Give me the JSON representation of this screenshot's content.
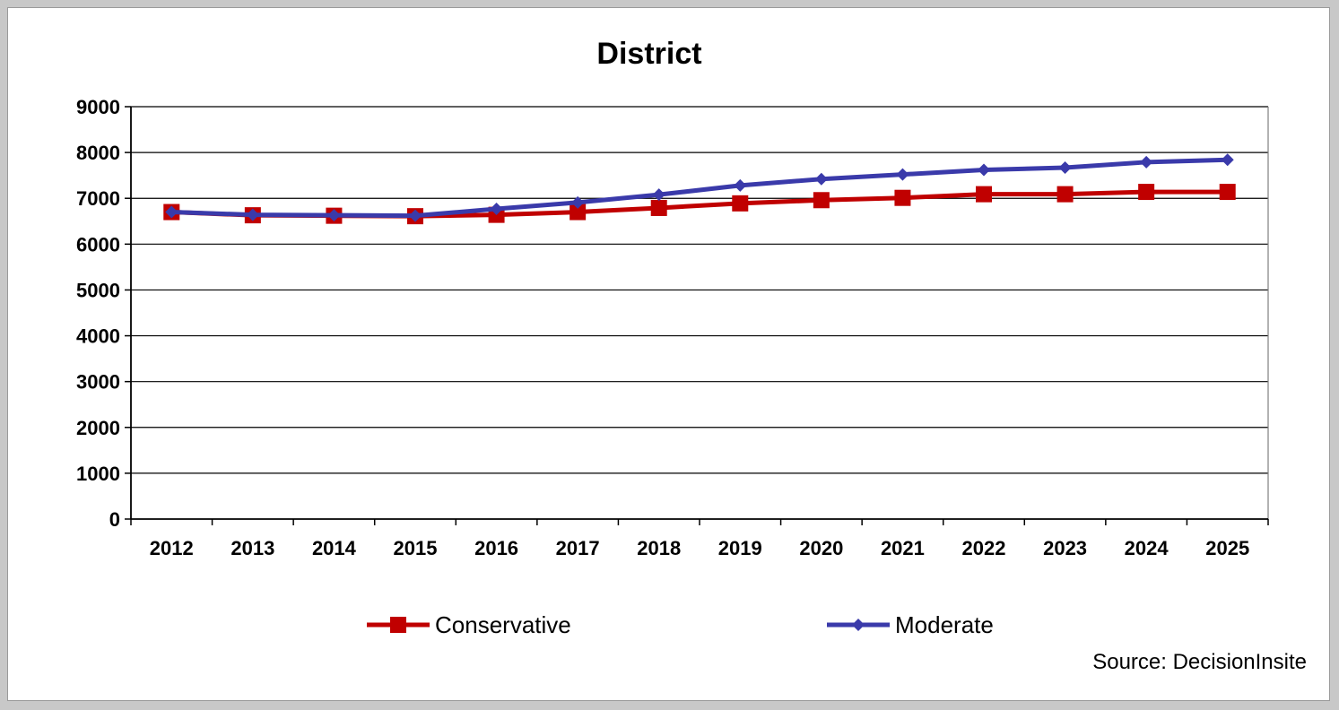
{
  "chart_data": {
    "type": "line",
    "title": "District",
    "xlabel": "",
    "ylabel": "",
    "categories": [
      "2012",
      "2013",
      "2014",
      "2015",
      "2016",
      "2017",
      "2018",
      "2019",
      "2020",
      "2021",
      "2022",
      "2023",
      "2024",
      "2025"
    ],
    "ylim": [
      0,
      9000
    ],
    "yticks": [
      0,
      1000,
      2000,
      3000,
      4000,
      5000,
      6000,
      7000,
      8000,
      9000
    ],
    "grid": true,
    "legend_position": "bottom",
    "series": [
      {
        "name": "Conservative",
        "color": "#c00000",
        "marker": "square",
        "values": [
          6700,
          6630,
          6620,
          6610,
          6640,
          6700,
          6790,
          6890,
          6960,
          7010,
          7090,
          7090,
          7140,
          7140
        ]
      },
      {
        "name": "Moderate",
        "color": "#3a3aaa",
        "marker": "diamond",
        "values": [
          6700,
          6640,
          6630,
          6620,
          6770,
          6910,
          7080,
          7280,
          7420,
          7520,
          7620,
          7670,
          7790,
          7840
        ]
      }
    ],
    "source": "Source:  DecisionInsite"
  }
}
